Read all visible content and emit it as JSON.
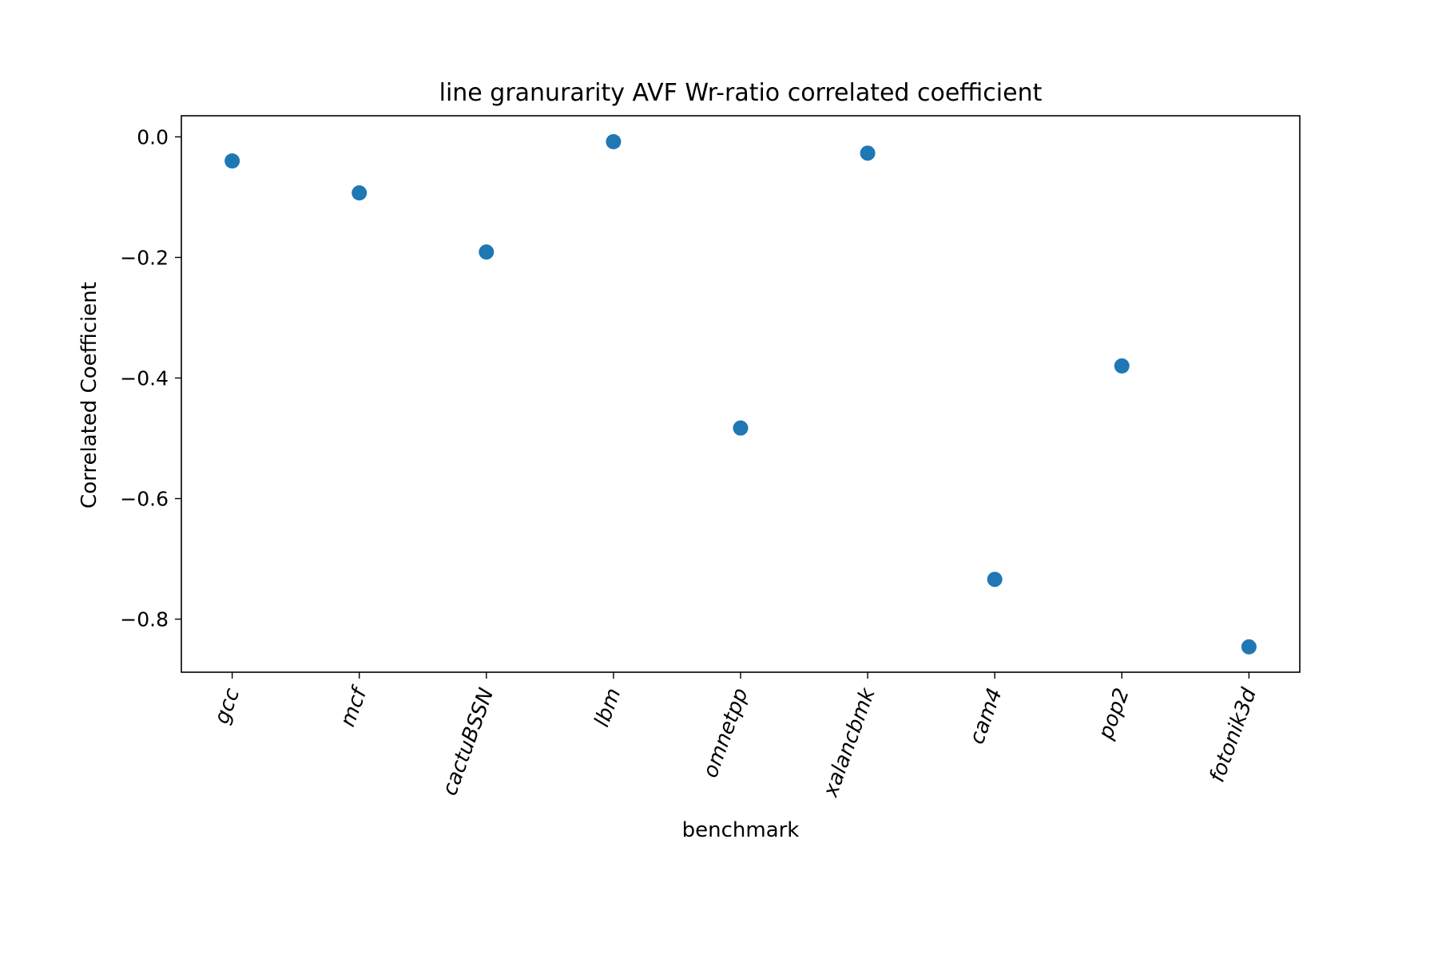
{
  "chart_data": {
    "type": "scatter",
    "title": "line granurarity AVF Wr-ratio correlated coefficient",
    "xlabel": "benchmark",
    "ylabel": "Correlated Coefficient",
    "categories": [
      "gcc",
      "mcf",
      "cactuBSSN",
      "lbm",
      "omnetpp",
      "xalancbmk",
      "cam4",
      "pop2",
      "fotonik3d"
    ],
    "values": [
      -0.04,
      -0.093,
      -0.191,
      -0.008,
      -0.483,
      -0.027,
      -0.734,
      -0.38,
      -0.846
    ],
    "ylim": [
      -0.888,
      0.035
    ],
    "yticks": [
      0.0,
      -0.2,
      -0.4,
      -0.6,
      -0.8
    ],
    "ytick_labels": [
      "0.0",
      "−0.2",
      "−0.4",
      "−0.6",
      "−0.8"
    ],
    "grid": false,
    "legend": "none",
    "color": "#1f77b4"
  }
}
